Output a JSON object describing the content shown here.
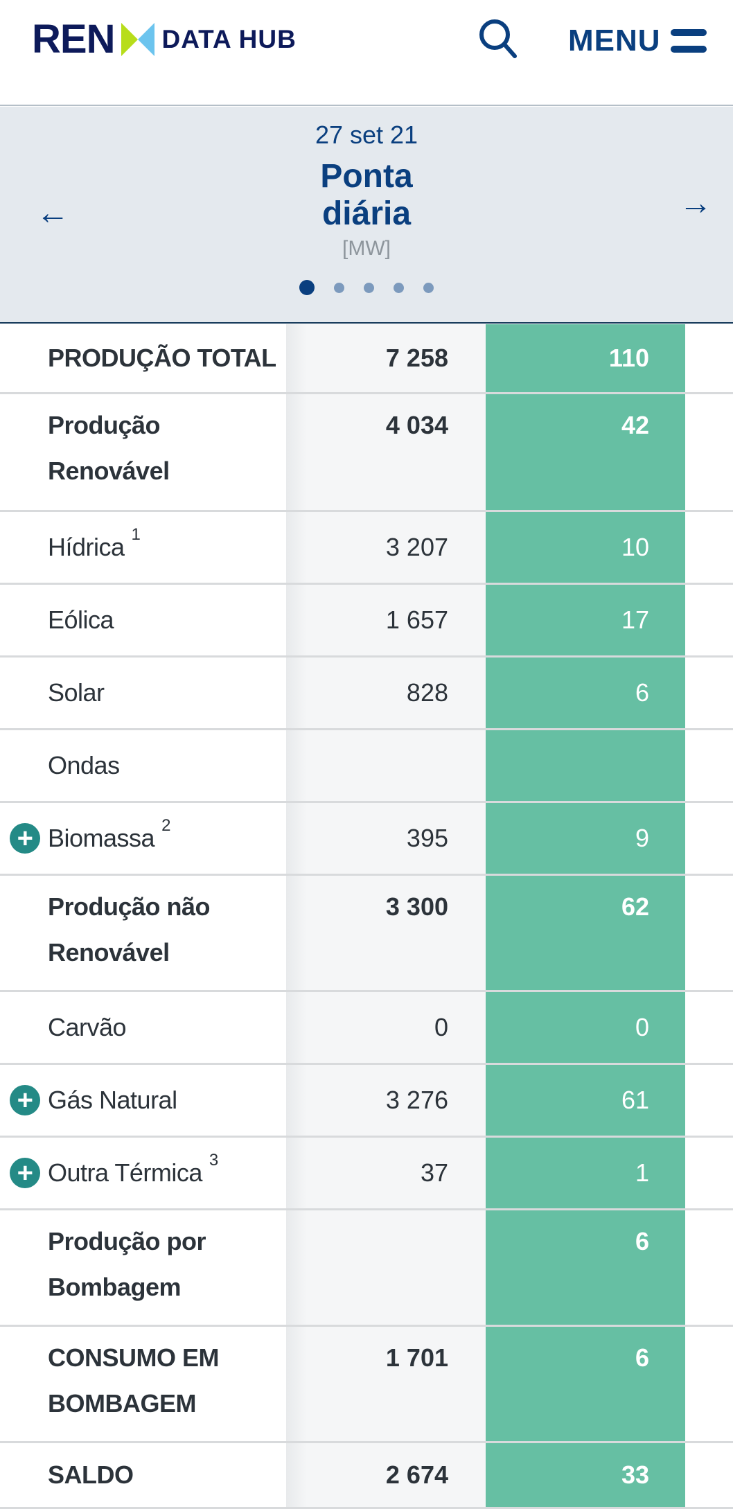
{
  "header": {
    "logo_text": "REN",
    "logo_sub": "DATA HUB",
    "menu_label": "MENU",
    "icons": [
      "search-icon",
      "menu-icon"
    ]
  },
  "banner": {
    "date": "27 set 21",
    "title": "Ponta diária",
    "unit": "[MW]",
    "page_count": 5,
    "active_page": 1
  },
  "colors": {
    "brand": "#0a3f7f",
    "accent": "#66bfa3",
    "plus": "#248a86"
  },
  "rows": [
    {
      "label": "PRODUÇÃO TOTAL",
      "sup": "",
      "value": "7 258",
      "highlight": "110",
      "bold": true,
      "expandable": false
    },
    {
      "label": "Produção Renovável",
      "sup": "",
      "value": "4 034",
      "highlight": "42",
      "bold": true,
      "expandable": false
    },
    {
      "label": "Hídrica",
      "sup": "1",
      "value": "3 207",
      "highlight": "10",
      "bold": false,
      "expandable": false
    },
    {
      "label": "Eólica",
      "sup": "",
      "value": "1 657",
      "highlight": "17",
      "bold": false,
      "expandable": false
    },
    {
      "label": "Solar",
      "sup": "",
      "value": "828",
      "highlight": "6",
      "bold": false,
      "expandable": false
    },
    {
      "label": "Ondas",
      "sup": "",
      "value": "",
      "highlight": "",
      "bold": false,
      "expandable": false
    },
    {
      "label": "Biomassa",
      "sup": "2",
      "value": "395",
      "highlight": "9",
      "bold": false,
      "expandable": true
    },
    {
      "label": "Produção não Renovável",
      "sup": "",
      "value": "3 300",
      "highlight": "62",
      "bold": true,
      "expandable": false
    },
    {
      "label": "Carvão",
      "sup": "",
      "value": "0",
      "highlight": "0",
      "bold": false,
      "expandable": false
    },
    {
      "label": "Gás Natural",
      "sup": "",
      "value": "3 276",
      "highlight": "61",
      "bold": false,
      "expandable": true
    },
    {
      "label": "Outra Térmica",
      "sup": "3",
      "value": "37",
      "highlight": "1",
      "bold": false,
      "expandable": true
    },
    {
      "label": "Produção por Bombagem",
      "sup": "",
      "value": "",
      "highlight": "6",
      "bold": true,
      "expandable": false
    },
    {
      "label": "CONSUMO EM BOMBAGEM",
      "sup": "",
      "value": "1 701",
      "highlight": "6",
      "bold": true,
      "expandable": false
    },
    {
      "label": "SALDO",
      "sup": "",
      "value": "2 674",
      "highlight": "33",
      "bold": true,
      "expandable": false
    }
  ]
}
